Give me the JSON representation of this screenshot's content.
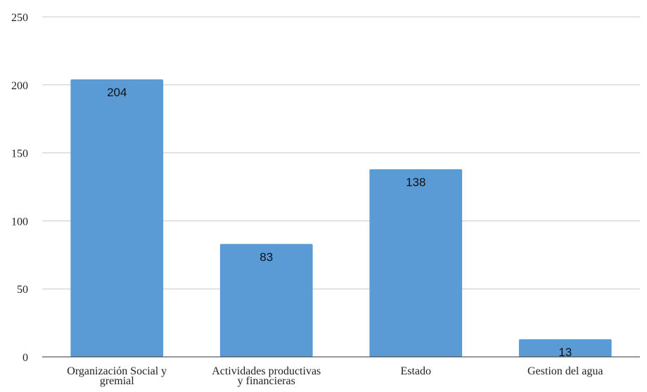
{
  "chart_data": {
    "type": "bar",
    "categories": [
      [
        "Organización Social y",
        "gremial"
      ],
      [
        "Actividades productivas",
        "y financieras"
      ],
      [
        "Estado"
      ],
      [
        "Gestion del agua"
      ]
    ],
    "values": [
      204,
      83,
      138,
      13
    ],
    "data_labels": [
      "204",
      "83",
      "138",
      "13"
    ],
    "ylim": [
      0,
      250
    ],
    "yticks": [
      0,
      50,
      100,
      150,
      200,
      250
    ],
    "grid": true,
    "title": "",
    "xlabel": "",
    "ylabel": "",
    "bar_color": "#5b9bd5"
  }
}
